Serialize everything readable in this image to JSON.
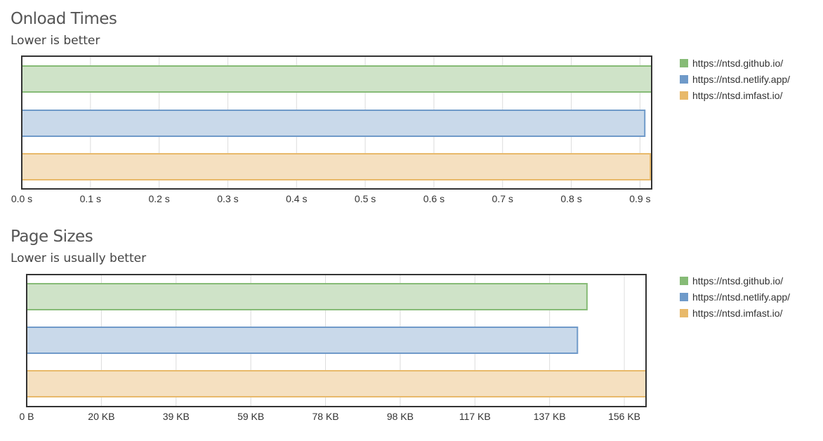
{
  "chart_data": [
    {
      "type": "bar",
      "orientation": "horizontal",
      "title": "Onload Times",
      "subtitle": "Lower is better",
      "categories": [
        "https://ntsd.github.io/",
        "https://ntsd.netlify.app/",
        "https://ntsd.imfast.io/"
      ],
      "values": [
        0.917,
        0.907,
        0.915
      ],
      "unit": "s",
      "xlim": [
        0,
        0.917
      ],
      "ticks": [
        0,
        0.1,
        0.2,
        0.3,
        0.4,
        0.5,
        0.6,
        0.7,
        0.8,
        0.9
      ],
      "tick_labels": [
        "0.0 s",
        "0.1 s",
        "0.2 s",
        "0.3 s",
        "0.4 s",
        "0.5 s",
        "0.6 s",
        "0.7 s",
        "0.8 s",
        "0.9 s"
      ],
      "grid": true,
      "legend_position": "right"
    },
    {
      "type": "bar",
      "orientation": "horizontal",
      "title": "Page Sizes",
      "subtitle": "Lower is usually better",
      "categories": [
        "https://ntsd.github.io/",
        "https://ntsd.netlify.app/",
        "https://ntsd.imfast.io/"
      ],
      "values": [
        147,
        144.5,
        162.5
      ],
      "unit": "KB",
      "xlim": [
        0,
        162.5
      ],
      "ticks": [
        0,
        19.6,
        39.2,
        58.8,
        78.4,
        98,
        117.6,
        137.2,
        156.8
      ],
      "tick_labels": [
        "0 B",
        "20 KB",
        "39 KB",
        "59 KB",
        "78 KB",
        "98 KB",
        "117 KB",
        "137 KB",
        "156 KB"
      ],
      "grid": true,
      "legend_position": "right"
    }
  ],
  "legend": [
    {
      "label": "https://ntsd.github.io/",
      "fill": "#cfe3c8",
      "stroke": "#86bb76"
    },
    {
      "label": "https://ntsd.netlify.app/",
      "fill": "#c9d9ea",
      "stroke": "#6f9ac9"
    },
    {
      "label": "https://ntsd.imfast.io/",
      "fill": "#f5e0c0",
      "stroke": "#e8b96a"
    }
  ]
}
